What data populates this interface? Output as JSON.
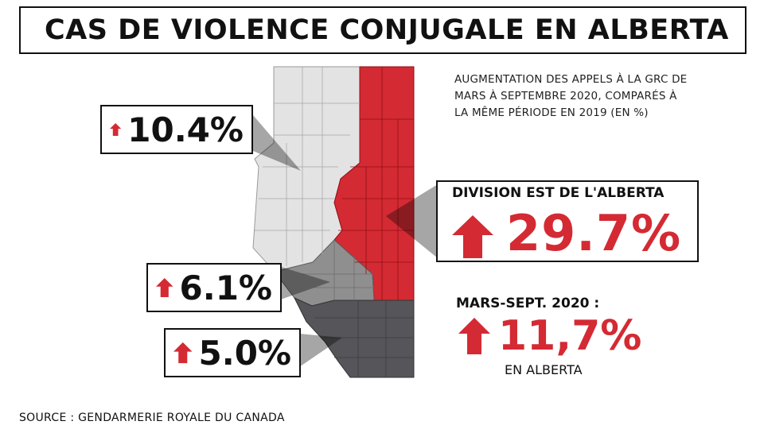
{
  "title": "CAS DE VIOLENCE CONJUGALE EN ALBERTA",
  "note": "AUGMENTATION DES APPELS À LA GRC DE MARS À SEPTEMBRE 2020, COMPARÉS À LA MÊME PÉRIODE EN 2019 (EN %)",
  "regions": {
    "north": {
      "value": "10.4%",
      "arrow_icon": "up-arrow-icon"
    },
    "central": {
      "value": "6.1%",
      "arrow_icon": "up-arrow-icon"
    },
    "south": {
      "value": "5.0%",
      "arrow_icon": "up-arrow-icon"
    },
    "east": {
      "label": "DIVISION EST DE L'ALBERTA",
      "value": "29.7%",
      "arrow_icon": "up-arrow-icon"
    }
  },
  "alberta_total": {
    "period_label": "MARS-SEPT. 2020 :",
    "value": "11,7%",
    "sub_label": "EN ALBERTA",
    "arrow_icon": "up-arrow-icon"
  },
  "source": "SOURCE : GENDARMERIE ROYALE DU CANADA",
  "colors": {
    "accent_red": "#d42a33",
    "north_region": "#e3e3e3",
    "central_region": "#8f8f8f",
    "south_region": "#55555a",
    "east_region": "#d42a33"
  }
}
